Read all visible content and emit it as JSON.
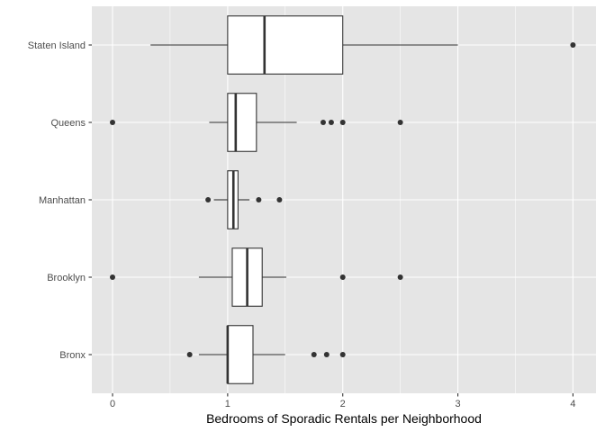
{
  "chart_data": {
    "type": "boxplot",
    "orientation": "horizontal",
    "title": "",
    "xlabel": "Bedrooms of Sporadic Rentals per Neighborhood",
    "ylabel": "",
    "xlim": [
      -0.18,
      4.2
    ],
    "x_ticks": [
      0,
      1,
      2,
      3,
      4
    ],
    "categories": [
      "Bronx",
      "Brooklyn",
      "Manhattan",
      "Queens",
      "Staten Island"
    ],
    "grid": true,
    "legend": "none",
    "colors": {
      "panel_background": "#e5e5e5",
      "grid": "#ffffff",
      "box_fill": "#ffffff",
      "box_line": "#333333",
      "outlier": "#333333"
    },
    "boxes": [
      {
        "category": "Bronx",
        "whisker_low": 0.75,
        "q1": 1.0,
        "median": 1.0,
        "q3": 1.22,
        "whisker_high": 1.5,
        "outliers": [
          0.67,
          1.75,
          1.86,
          2.0
        ]
      },
      {
        "category": "Brooklyn",
        "whisker_low": 0.75,
        "q1": 1.04,
        "median": 1.17,
        "q3": 1.3,
        "whisker_high": 1.51,
        "outliers": [
          0.0,
          2.0,
          2.5
        ]
      },
      {
        "category": "Manhattan",
        "whisker_low": 0.88,
        "q1": 1.0,
        "median": 1.05,
        "q3": 1.09,
        "whisker_high": 1.19,
        "outliers": [
          0.83,
          1.27,
          1.45
        ]
      },
      {
        "category": "Queens",
        "whisker_low": 0.84,
        "q1": 1.0,
        "median": 1.07,
        "q3": 1.25,
        "whisker_high": 1.6,
        "outliers": [
          0.0,
          1.83,
          1.9,
          2.0,
          2.5
        ]
      },
      {
        "category": "Staten Island",
        "whisker_low": 0.33,
        "q1": 1.0,
        "median": 1.32,
        "q3": 2.0,
        "whisker_high": 3.0,
        "outliers": [
          4.0
        ]
      }
    ]
  }
}
